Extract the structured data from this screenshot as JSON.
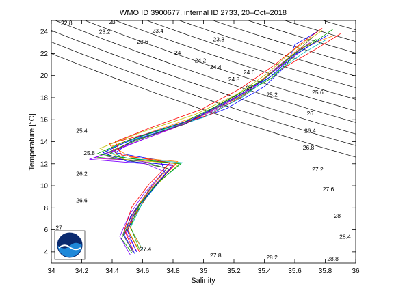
{
  "chart_data": {
    "type": "line",
    "title": "WMO ID 3900677, internal ID 2733, 20–Oct–2018",
    "xlabel": "Salinity",
    "ylabel": "Temperature [°C]",
    "xlim": [
      34,
      36
    ],
    "ylim": [
      3,
      25
    ],
    "x_ticks": [
      "34",
      "34.2",
      "34.4",
      "34.6",
      "34.8",
      "35",
      "35.2",
      "35.4",
      "35.6",
      "35.8",
      "36"
    ],
    "y_ticks": [
      "4",
      "6",
      "8",
      "10",
      "12",
      "14",
      "16",
      "18",
      "20",
      "22",
      "24"
    ],
    "grid": false,
    "legend": "none",
    "logo": "noaa-logo",
    "density_contour_labels": [
      {
        "text": "22.8",
        "s": 34.1,
        "t": 24.6
      },
      {
        "text": "23",
        "s": 34.4,
        "t": 24.7
      },
      {
        "text": "23.2",
        "s": 34.35,
        "t": 23.8
      },
      {
        "text": "23.4",
        "s": 34.7,
        "t": 23.9
      },
      {
        "text": "23.6",
        "s": 34.6,
        "t": 22.9
      },
      {
        "text": "23.8",
        "s": 35.1,
        "t": 23.1
      },
      {
        "text": "24",
        "s": 34.83,
        "t": 21.9
      },
      {
        "text": "24.2",
        "s": 34.98,
        "t": 21.2
      },
      {
        "text": "24.4",
        "s": 35.08,
        "t": 20.6
      },
      {
        "text": "24.6",
        "s": 35.3,
        "t": 20.1
      },
      {
        "text": "24.8",
        "s": 35.2,
        "t": 19.5
      },
      {
        "text": "25",
        "s": 35.3,
        "t": 18.7
      },
      {
        "text": "25.2",
        "s": 35.45,
        "t": 18.1
      },
      {
        "text": "25.6",
        "s": 35.75,
        "t": 18.3
      },
      {
        "text": "26",
        "s": 35.7,
        "t": 16.4
      },
      {
        "text": "26.4",
        "s": 35.7,
        "t": 14.8
      },
      {
        "text": "26.8",
        "s": 35.69,
        "t": 13.3
      },
      {
        "text": "27.2",
        "s": 35.75,
        "t": 11.3
      },
      {
        "text": "27.6",
        "s": 35.82,
        "t": 9.5
      },
      {
        "text": "28",
        "s": 35.88,
        "t": 7.1
      },
      {
        "text": "28.4",
        "s": 35.93,
        "t": 5.2
      },
      {
        "text": "28.8",
        "s": 35.85,
        "t": 3.2
      },
      {
        "text": "25.4",
        "s": 34.2,
        "t": 14.8
      },
      {
        "text": "25.8",
        "s": 34.25,
        "t": 12.8
      },
      {
        "text": "26.2",
        "s": 34.2,
        "t": 10.9
      },
      {
        "text": "26.6",
        "s": 34.2,
        "t": 8.5
      },
      {
        "text": "27",
        "s": 34.05,
        "t": 6.0
      },
      {
        "text": "27.4",
        "s": 34.62,
        "t": 4.1
      },
      {
        "text": "27.8",
        "s": 35.08,
        "t": 3.5
      },
      {
        "text": "28.2",
        "s": 35.45,
        "t": 3.3
      }
    ],
    "series": [
      {
        "color": "#0000ff",
        "values": [
          [
            34.55,
            3.8
          ],
          [
            34.48,
            5.5
          ],
          [
            34.52,
            7.2
          ],
          [
            34.62,
            9
          ],
          [
            34.75,
            11
          ],
          [
            34.72,
            12.3
          ],
          [
            34.42,
            13
          ],
          [
            34.55,
            14.2
          ],
          [
            34.85,
            15.5
          ],
          [
            35.15,
            17
          ],
          [
            35.4,
            19
          ],
          [
            35.55,
            21
          ],
          [
            35.6,
            22.8
          ],
          [
            35.75,
            24
          ]
        ]
      },
      {
        "color": "#ff0000",
        "values": [
          [
            34.58,
            4.0
          ],
          [
            34.5,
            6
          ],
          [
            34.58,
            8
          ],
          [
            34.68,
            10
          ],
          [
            34.82,
            12
          ],
          [
            34.45,
            12.6
          ],
          [
            34.38,
            13.8
          ],
          [
            34.7,
            15
          ],
          [
            35.05,
            16.5
          ],
          [
            35.3,
            18.5
          ],
          [
            35.5,
            20.5
          ],
          [
            35.75,
            22.5
          ],
          [
            35.9,
            23.8
          ]
        ]
      },
      {
        "color": "#00a000",
        "values": [
          [
            34.53,
            3.9
          ],
          [
            34.46,
            5.2
          ],
          [
            34.53,
            7
          ],
          [
            34.65,
            9.5
          ],
          [
            34.78,
            11.5
          ],
          [
            34.6,
            12.2
          ],
          [
            34.3,
            12.6
          ],
          [
            34.5,
            13.8
          ],
          [
            34.9,
            15.8
          ],
          [
            35.2,
            17.8
          ],
          [
            35.45,
            19.8
          ],
          [
            35.6,
            21.8
          ],
          [
            35.85,
            24.2
          ]
        ]
      },
      {
        "color": "#00bfbf",
        "values": [
          [
            34.6,
            4.2
          ],
          [
            34.52,
            6.2
          ],
          [
            34.6,
            8.5
          ],
          [
            34.72,
            10.5
          ],
          [
            34.86,
            12.1
          ],
          [
            34.5,
            12.5
          ],
          [
            34.35,
            13.2
          ],
          [
            34.62,
            14.6
          ],
          [
            35.0,
            16.2
          ],
          [
            35.25,
            18
          ],
          [
            35.5,
            20.5
          ],
          [
            35.65,
            22
          ],
          [
            35.8,
            23.2
          ]
        ]
      },
      {
        "color": "#bf00bf",
        "values": [
          [
            34.56,
            4.1
          ],
          [
            34.49,
            5.8
          ],
          [
            34.55,
            7.8
          ],
          [
            34.66,
            9.8
          ],
          [
            34.8,
            11.8
          ],
          [
            34.55,
            12.3
          ],
          [
            34.28,
            12.5
          ],
          [
            34.46,
            13.5
          ],
          [
            34.8,
            15.2
          ],
          [
            35.1,
            17
          ],
          [
            35.35,
            19.2
          ],
          [
            35.52,
            21.2
          ],
          [
            35.7,
            23
          ]
        ]
      },
      {
        "color": "#bfbf00",
        "values": [
          [
            34.57,
            4.3
          ],
          [
            34.5,
            6.1
          ],
          [
            34.57,
            8.2
          ],
          [
            34.7,
            10.2
          ],
          [
            34.84,
            12
          ],
          [
            34.48,
            12.4
          ],
          [
            34.32,
            13.4
          ],
          [
            34.58,
            14.8
          ],
          [
            34.95,
            16.5
          ],
          [
            35.22,
            18.3
          ],
          [
            35.42,
            20.2
          ],
          [
            35.58,
            22.2
          ],
          [
            35.78,
            24.1
          ]
        ]
      },
      {
        "color": "#404040",
        "values": [
          [
            34.54,
            3.9
          ],
          [
            34.47,
            5.6
          ],
          [
            34.54,
            7.6
          ],
          [
            34.64,
            9.6
          ],
          [
            34.76,
            11.6
          ],
          [
            34.58,
            12.1
          ],
          [
            34.36,
            12.7
          ],
          [
            34.52,
            14
          ],
          [
            34.88,
            15.6
          ],
          [
            35.12,
            17.5
          ],
          [
            35.38,
            19.5
          ],
          [
            35.55,
            21.4
          ],
          [
            35.72,
            23.5
          ]
        ]
      },
      {
        "color": "#ff8000",
        "values": [
          [
            34.59,
            4.4
          ],
          [
            34.51,
            6.4
          ],
          [
            34.59,
            8.6
          ],
          [
            34.7,
            10.6
          ],
          [
            34.83,
            12.2
          ],
          [
            34.52,
            12.6
          ],
          [
            34.4,
            13.6
          ],
          [
            34.66,
            14.9
          ],
          [
            35.02,
            16.6
          ],
          [
            35.28,
            18.6
          ],
          [
            35.48,
            20.6
          ],
          [
            35.62,
            22.4
          ],
          [
            35.85,
            23.6
          ]
        ]
      },
      {
        "color": "#8000ff",
        "values": [
          [
            34.52,
            3.7
          ],
          [
            34.45,
            5.4
          ],
          [
            34.51,
            7.3
          ],
          [
            34.61,
            9.3
          ],
          [
            34.74,
            11.3
          ],
          [
            34.62,
            12
          ],
          [
            34.25,
            12.4
          ],
          [
            34.44,
            13.3
          ],
          [
            34.75,
            15
          ],
          [
            35.05,
            16.8
          ],
          [
            35.32,
            18.8
          ],
          [
            35.5,
            20.8
          ],
          [
            35.68,
            22.6
          ]
        ]
      },
      {
        "color": "#0000ff",
        "values": [
          [
            34.56,
            4.0
          ],
          [
            34.5,
            5.9
          ],
          [
            34.56,
            7.9
          ],
          [
            34.68,
            9.9
          ],
          [
            34.8,
            11.9
          ],
          [
            34.5,
            12.2
          ],
          [
            34.34,
            13
          ],
          [
            34.56,
            14.4
          ],
          [
            34.92,
            16
          ],
          [
            35.18,
            17.8
          ],
          [
            35.44,
            19.9
          ],
          [
            35.6,
            21.9
          ],
          [
            35.82,
            23.7
          ]
        ]
      },
      {
        "color": "#ff0000",
        "values": [
          [
            34.54,
            4.1
          ],
          [
            34.48,
            6
          ],
          [
            34.53,
            8.1
          ],
          [
            34.64,
            10.1
          ],
          [
            34.78,
            12.1
          ],
          [
            34.46,
            12.8
          ],
          [
            34.42,
            14
          ],
          [
            34.64,
            15.2
          ],
          [
            34.98,
            16.9
          ],
          [
            35.24,
            18.8
          ],
          [
            35.46,
            20.9
          ],
          [
            35.64,
            22.9
          ],
          [
            35.78,
            24.3
          ]
        ]
      },
      {
        "color": "#00a000",
        "values": [
          [
            34.58,
            4.2
          ],
          [
            34.52,
            6.3
          ],
          [
            34.58,
            8.3
          ],
          [
            34.7,
            10.3
          ],
          [
            34.85,
            12
          ],
          [
            34.56,
            12.4
          ],
          [
            34.3,
            12.9
          ],
          [
            34.5,
            14.1
          ],
          [
            34.86,
            15.7
          ],
          [
            35.14,
            17.6
          ],
          [
            35.4,
            19.7
          ],
          [
            35.56,
            21.6
          ],
          [
            35.74,
            23.3
          ]
        ]
      }
    ]
  }
}
